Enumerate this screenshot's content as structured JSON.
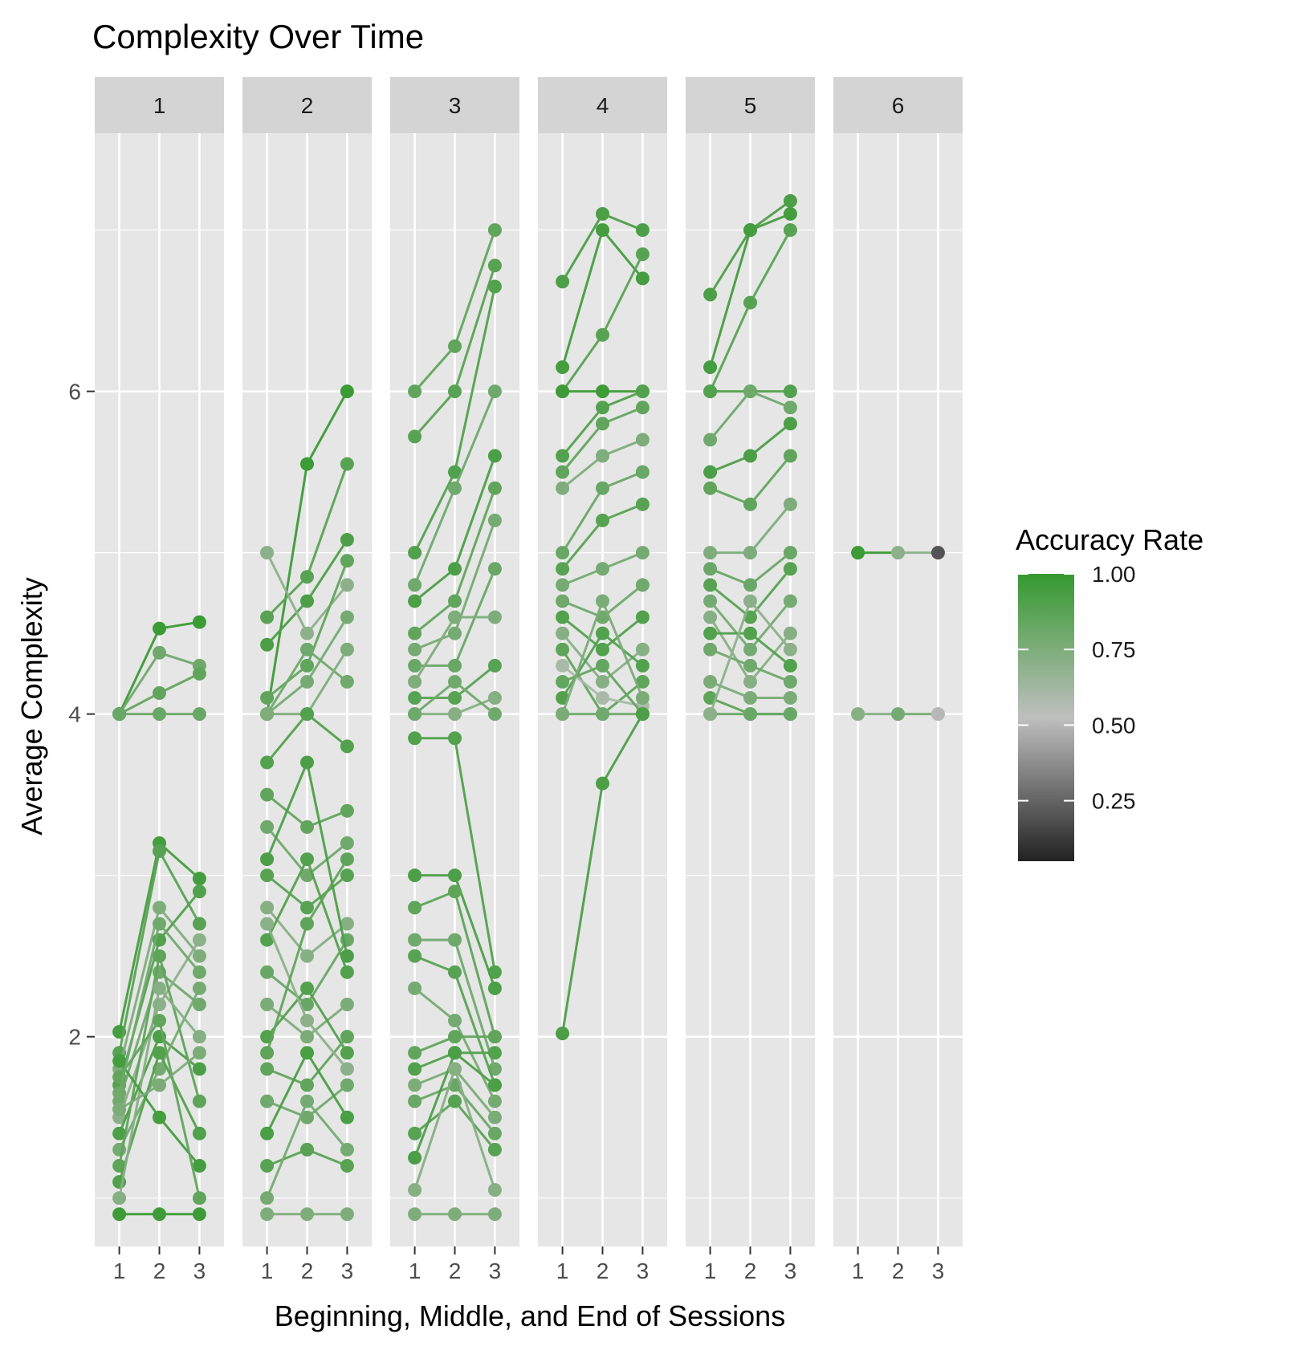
{
  "chart_data": {
    "type": "line",
    "title": "Complexity Over Time",
    "xlabel": "Beginning, Middle, and End of Sessions",
    "ylabel": "Average Complexity",
    "x_ticks": [
      "1",
      "2",
      "3"
    ],
    "y_ticks": [
      2,
      4,
      6
    ],
    "ylim": [
      0.7,
      7.6
    ],
    "grid": true,
    "facets": [
      {
        "label": "1",
        "lines": [
          {
            "y": [
              4,
              4.53,
              4.57
            ],
            "acc": 0.98
          },
          {
            "y": [
              4,
              4.38,
              4.3
            ],
            "acc": 0.8
          },
          {
            "y": [
              4,
              4.13,
              4.25
            ],
            "acc": 0.85
          },
          {
            "y": [
              4,
              4,
              4
            ],
            "acc": 0.82
          },
          {
            "y": [
              2.03,
              3.2,
              2.98
            ],
            "acc": 0.95
          },
          {
            "y": [
              1.9,
              3.15,
              2.7
            ],
            "acc": 0.88
          },
          {
            "y": [
              1.8,
              2.8,
              2.5
            ],
            "acc": 0.75
          },
          {
            "y": [
              1.7,
              2.6,
              2.9
            ],
            "acc": 0.9
          },
          {
            "y": [
              1.6,
              2.4,
              2.2
            ],
            "acc": 0.8
          },
          {
            "y": [
              1.5,
              2.2,
              2.6
            ],
            "acc": 0.7
          },
          {
            "y": [
              1.4,
              2.0,
              1.8
            ],
            "acc": 0.92
          },
          {
            "y": [
              1.3,
              1.8,
              2.3
            ],
            "acc": 0.78
          },
          {
            "y": [
              1.2,
              2.5,
              1.6
            ],
            "acc": 0.86
          },
          {
            "y": [
              1.1,
              1.9,
              1.4
            ],
            "acc": 0.9
          },
          {
            "y": [
              1.0,
              2.3,
              2.0
            ],
            "acc": 0.72
          },
          {
            "y": [
              1.85,
              1.5,
              1.2
            ],
            "acc": 0.95
          },
          {
            "y": [
              0.9,
              0.9,
              0.9
            ],
            "acc": 0.97
          },
          {
            "y": [
              1.75,
              2.1,
              1.0
            ],
            "acc": 0.85
          },
          {
            "y": [
              1.65,
              2.7,
              2.4
            ],
            "acc": 0.8
          },
          {
            "y": [
              1.55,
              1.7,
              1.9
            ],
            "acc": 0.76
          }
        ]
      },
      {
        "label": "2",
        "lines": [
          {
            "y": [
              4,
              5.55,
              6
            ],
            "acc": 0.98
          },
          {
            "y": [
              4.6,
              4.85,
              5.55
            ],
            "acc": 0.88
          },
          {
            "y": [
              4.43,
              4.7,
              5.08
            ],
            "acc": 0.92
          },
          {
            "y": [
              5.0,
              4.5,
              4.8
            ],
            "acc": 0.7
          },
          {
            "y": [
              4.1,
              4.3,
              4.95
            ],
            "acc": 0.85
          },
          {
            "y": [
              4,
              4.2,
              4.6
            ],
            "acc": 0.78
          },
          {
            "y": [
              4,
              4.4,
              4.2
            ],
            "acc": 0.8
          },
          {
            "y": [
              4,
              4,
              4.4
            ],
            "acc": 0.75
          },
          {
            "y": [
              3.7,
              4.0,
              3.8
            ],
            "acc": 0.9
          },
          {
            "y": [
              3.5,
              3.3,
              3.4
            ],
            "acc": 0.85
          },
          {
            "y": [
              3.3,
              3.0,
              3.2
            ],
            "acc": 0.8
          },
          {
            "y": [
              3.0,
              2.8,
              3.0
            ],
            "acc": 0.88
          },
          {
            "y": [
              2.8,
              2.5,
              2.7
            ],
            "acc": 0.72
          },
          {
            "y": [
              2.6,
              3.1,
              2.4
            ],
            "acc": 0.9
          },
          {
            "y": [
              2.4,
              2.2,
              2.6
            ],
            "acc": 0.82
          },
          {
            "y": [
              2.2,
              2.0,
              2.2
            ],
            "acc": 0.76
          },
          {
            "y": [
              2.0,
              2.3,
              1.9
            ],
            "acc": 0.9
          },
          {
            "y": [
              1.8,
              1.7,
              2.0
            ],
            "acc": 0.85
          },
          {
            "y": [
              1.6,
              1.5,
              1.7
            ],
            "acc": 0.8
          },
          {
            "y": [
              1.4,
              1.9,
              1.5
            ],
            "acc": 0.93
          },
          {
            "y": [
              1.2,
              1.3,
              1.2
            ],
            "acc": 0.88
          },
          {
            "y": [
              1.0,
              1.6,
              1.3
            ],
            "acc": 0.78
          },
          {
            "y": [
              0.9,
              0.9,
              0.9
            ],
            "acc": 0.75
          },
          {
            "y": [
              3.1,
              3.7,
              2.5
            ],
            "acc": 0.92
          },
          {
            "y": [
              2.7,
              2.1,
              1.8
            ],
            "acc": 0.7
          },
          {
            "y": [
              1.9,
              2.7,
              3.1
            ],
            "acc": 0.86
          }
        ]
      },
      {
        "label": "3",
        "lines": [
          {
            "y": [
              6.0,
              6.28,
              7.0
            ],
            "acc": 0.85
          },
          {
            "y": [
              5.72,
              6.0,
              6.78
            ],
            "acc": 0.88
          },
          {
            "y": [
              5.0,
              5.5,
              6.65
            ],
            "acc": 0.9
          },
          {
            "y": [
              4.8,
              5.4,
              6.0
            ],
            "acc": 0.8
          },
          {
            "y": [
              4.7,
              4.9,
              5.6
            ],
            "acc": 0.92
          },
          {
            "y": [
              4.5,
              4.7,
              5.4
            ],
            "acc": 0.85
          },
          {
            "y": [
              4.4,
              4.5,
              5.2
            ],
            "acc": 0.78
          },
          {
            "y": [
              4.3,
              4.3,
              4.9
            ],
            "acc": 0.82
          },
          {
            "y": [
              4.2,
              4.6,
              4.6
            ],
            "acc": 0.75
          },
          {
            "y": [
              4.1,
              4.1,
              4.3
            ],
            "acc": 0.88
          },
          {
            "y": [
              4.0,
              4.0,
              4.1
            ],
            "acc": 0.72
          },
          {
            "y": [
              4.0,
              4.2,
              4.0
            ],
            "acc": 0.8
          },
          {
            "y": [
              3.85,
              3.85,
              2.4
            ],
            "acc": 0.9
          },
          {
            "y": [
              3.0,
              3.0,
              2.3
            ],
            "acc": 0.92
          },
          {
            "y": [
              2.8,
              2.9,
              2.0
            ],
            "acc": 0.86
          },
          {
            "y": [
              2.6,
              2.6,
              1.8
            ],
            "acc": 0.8
          },
          {
            "y": [
              2.5,
              2.4,
              1.7
            ],
            "acc": 0.88
          },
          {
            "y": [
              2.3,
              2.1,
              1.6
            ],
            "acc": 0.78
          },
          {
            "y": [
              1.9,
              2.0,
              2.0
            ],
            "acc": 0.85
          },
          {
            "y": [
              1.8,
              1.9,
              1.9
            ],
            "acc": 0.9
          },
          {
            "y": [
              1.7,
              1.8,
              1.5
            ],
            "acc": 0.76
          },
          {
            "y": [
              1.6,
              1.7,
              1.4
            ],
            "acc": 0.82
          },
          {
            "y": [
              1.4,
              1.6,
              1.3
            ],
            "acc": 0.88
          },
          {
            "y": [
              1.25,
              1.9,
              1.7
            ],
            "acc": 0.92
          },
          {
            "y": [
              1.05,
              1.8,
              1.05
            ],
            "acc": 0.72
          },
          {
            "y": [
              0.9,
              0.9,
              0.9
            ],
            "acc": 0.75
          }
        ]
      },
      {
        "label": "4",
        "lines": [
          {
            "y": [
              6.68,
              7.1,
              7.0
            ],
            "acc": 0.92
          },
          {
            "y": [
              6.15,
              7.0,
              6.7
            ],
            "acc": 0.95
          },
          {
            "y": [
              6.0,
              6.35,
              6.85
            ],
            "acc": 0.88
          },
          {
            "y": [
              6.0,
              6.0,
              6.0
            ],
            "acc": 0.97
          },
          {
            "y": [
              5.6,
              5.9,
              6.0
            ],
            "acc": 0.9
          },
          {
            "y": [
              5.5,
              5.8,
              5.9
            ],
            "acc": 0.85
          },
          {
            "y": [
              5.4,
              5.6,
              5.7
            ],
            "acc": 0.75
          },
          {
            "y": [
              5.0,
              5.4,
              5.5
            ],
            "acc": 0.82
          },
          {
            "y": [
              4.9,
              5.2,
              5.3
            ],
            "acc": 0.88
          },
          {
            "y": [
              4.8,
              4.9,
              5.0
            ],
            "acc": 0.78
          },
          {
            "y": [
              4.7,
              4.6,
              4.8
            ],
            "acc": 0.8
          },
          {
            "y": [
              4.6,
              4.4,
              4.6
            ],
            "acc": 0.9
          },
          {
            "y": [
              4.5,
              4.2,
              4.4
            ],
            "acc": 0.72
          },
          {
            "y": [
              4.4,
              4.0,
              4.2
            ],
            "acc": 0.86
          },
          {
            "y": [
              4.3,
              4.1,
              4.05
            ],
            "acc": 0.6
          },
          {
            "y": [
              4.2,
              4.3,
              4.0
            ],
            "acc": 0.84
          },
          {
            "y": [
              4.1,
              4.5,
              4.3
            ],
            "acc": 0.9
          },
          {
            "y": [
              4.0,
              4.0,
              4.0
            ],
            "acc": 0.8
          },
          {
            "y": [
              4.0,
              4.7,
              4.1
            ],
            "acc": 0.76
          },
          {
            "y": [
              2.02,
              3.57,
              4.0
            ],
            "acc": 0.92
          }
        ]
      },
      {
        "label": "5",
        "lines": [
          {
            "y": [
              6.6,
              7.0,
              7.18
            ],
            "acc": 0.92
          },
          {
            "y": [
              6.15,
              7.0,
              7.1
            ],
            "acc": 0.95
          },
          {
            "y": [
              6.0,
              6.55,
              7.0
            ],
            "acc": 0.88
          },
          {
            "y": [
              6.0,
              6.0,
              6.0
            ],
            "acc": 0.9
          },
          {
            "y": [
              5.7,
              6.0,
              5.9
            ],
            "acc": 0.8
          },
          {
            "y": [
              5.5,
              5.6,
              5.8
            ],
            "acc": 0.92
          },
          {
            "y": [
              5.4,
              5.3,
              5.6
            ],
            "acc": 0.85
          },
          {
            "y": [
              5.0,
              5.0,
              5.3
            ],
            "acc": 0.75
          },
          {
            "y": [
              4.9,
              4.8,
              5.0
            ],
            "acc": 0.82
          },
          {
            "y": [
              4.8,
              4.6,
              4.9
            ],
            "acc": 0.88
          },
          {
            "y": [
              4.7,
              4.4,
              4.7
            ],
            "acc": 0.78
          },
          {
            "y": [
              4.6,
              4.2,
              4.5
            ],
            "acc": 0.72
          },
          {
            "y": [
              4.5,
              4.5,
              4.3
            ],
            "acc": 0.9
          },
          {
            "y": [
              4.4,
              4.3,
              4.2
            ],
            "acc": 0.8
          },
          {
            "y": [
              4.2,
              4.1,
              4.1
            ],
            "acc": 0.76
          },
          {
            "y": [
              4.1,
              4.0,
              4.0
            ],
            "acc": 0.86
          },
          {
            "y": [
              4.0,
              4.0,
              4.0
            ],
            "acc": 0.82
          },
          {
            "y": [
              4.0,
              4.7,
              4.4
            ],
            "acc": 0.7
          }
        ]
      },
      {
        "label": "6",
        "lines": [
          {
            "y": [
              5,
              5,
              5
            ],
            "accs": [
              0.98,
              0.7,
              0.2
            ]
          },
          {
            "y": [
              4,
              4,
              4
            ],
            "accs": [
              0.72,
              0.78,
              0.5
            ]
          }
        ]
      }
    ],
    "legend": {
      "title": "Accuracy Rate",
      "position": "right",
      "breaks": [
        "1.00",
        "0.75",
        "0.50",
        "0.25"
      ],
      "break_values": [
        1.0,
        0.75,
        0.5,
        0.25
      ],
      "range": [
        0.05,
        1.0
      ],
      "colors": {
        "low": "#222222",
        "mid": "#bfbfbf",
        "high": "#35992f"
      }
    },
    "panel_bg": "#e6e6e6",
    "strip_bg": "#d4d4d4"
  }
}
